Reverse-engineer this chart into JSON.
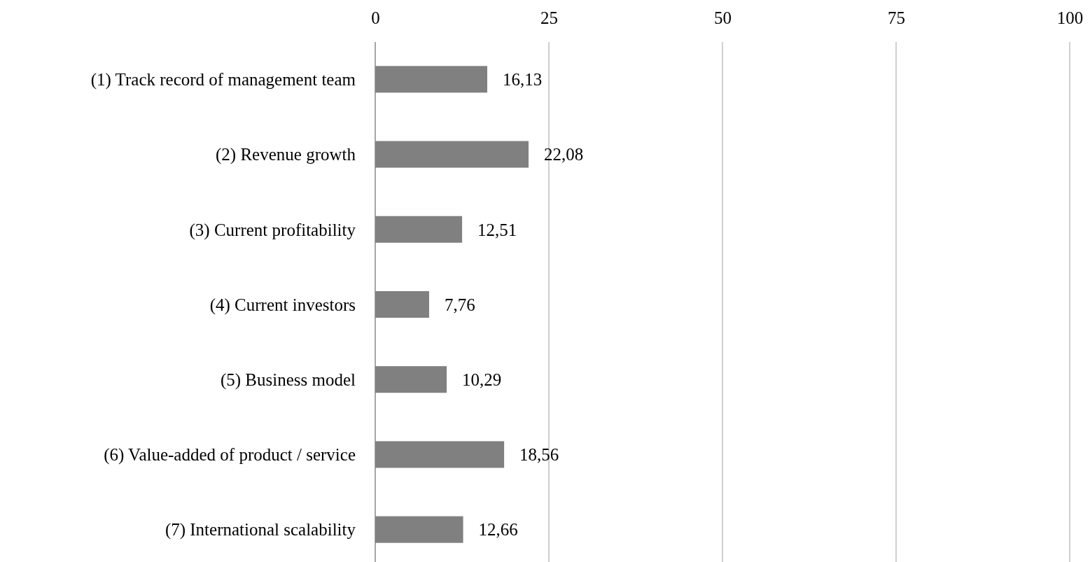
{
  "chart_data": {
    "type": "bar",
    "orientation": "horizontal",
    "categories": [
      "(1) Track record of management team",
      "(2) Revenue growth",
      "(3) Current profitability",
      "(4) Current investors",
      "(5) Business model",
      "(6) Value-added of product / service",
      "(7) International scalability"
    ],
    "values": [
      16.13,
      22.08,
      12.51,
      7.76,
      10.29,
      18.56,
      12.66
    ],
    "value_labels": [
      "16,13",
      "22,08",
      "12,51",
      "7,76",
      "10,29",
      "18,56",
      "12,66"
    ],
    "color": "#808080",
    "xlim": [
      0,
      100
    ],
    "xticks": [
      0,
      25,
      50,
      75,
      100
    ],
    "grid": "x"
  }
}
